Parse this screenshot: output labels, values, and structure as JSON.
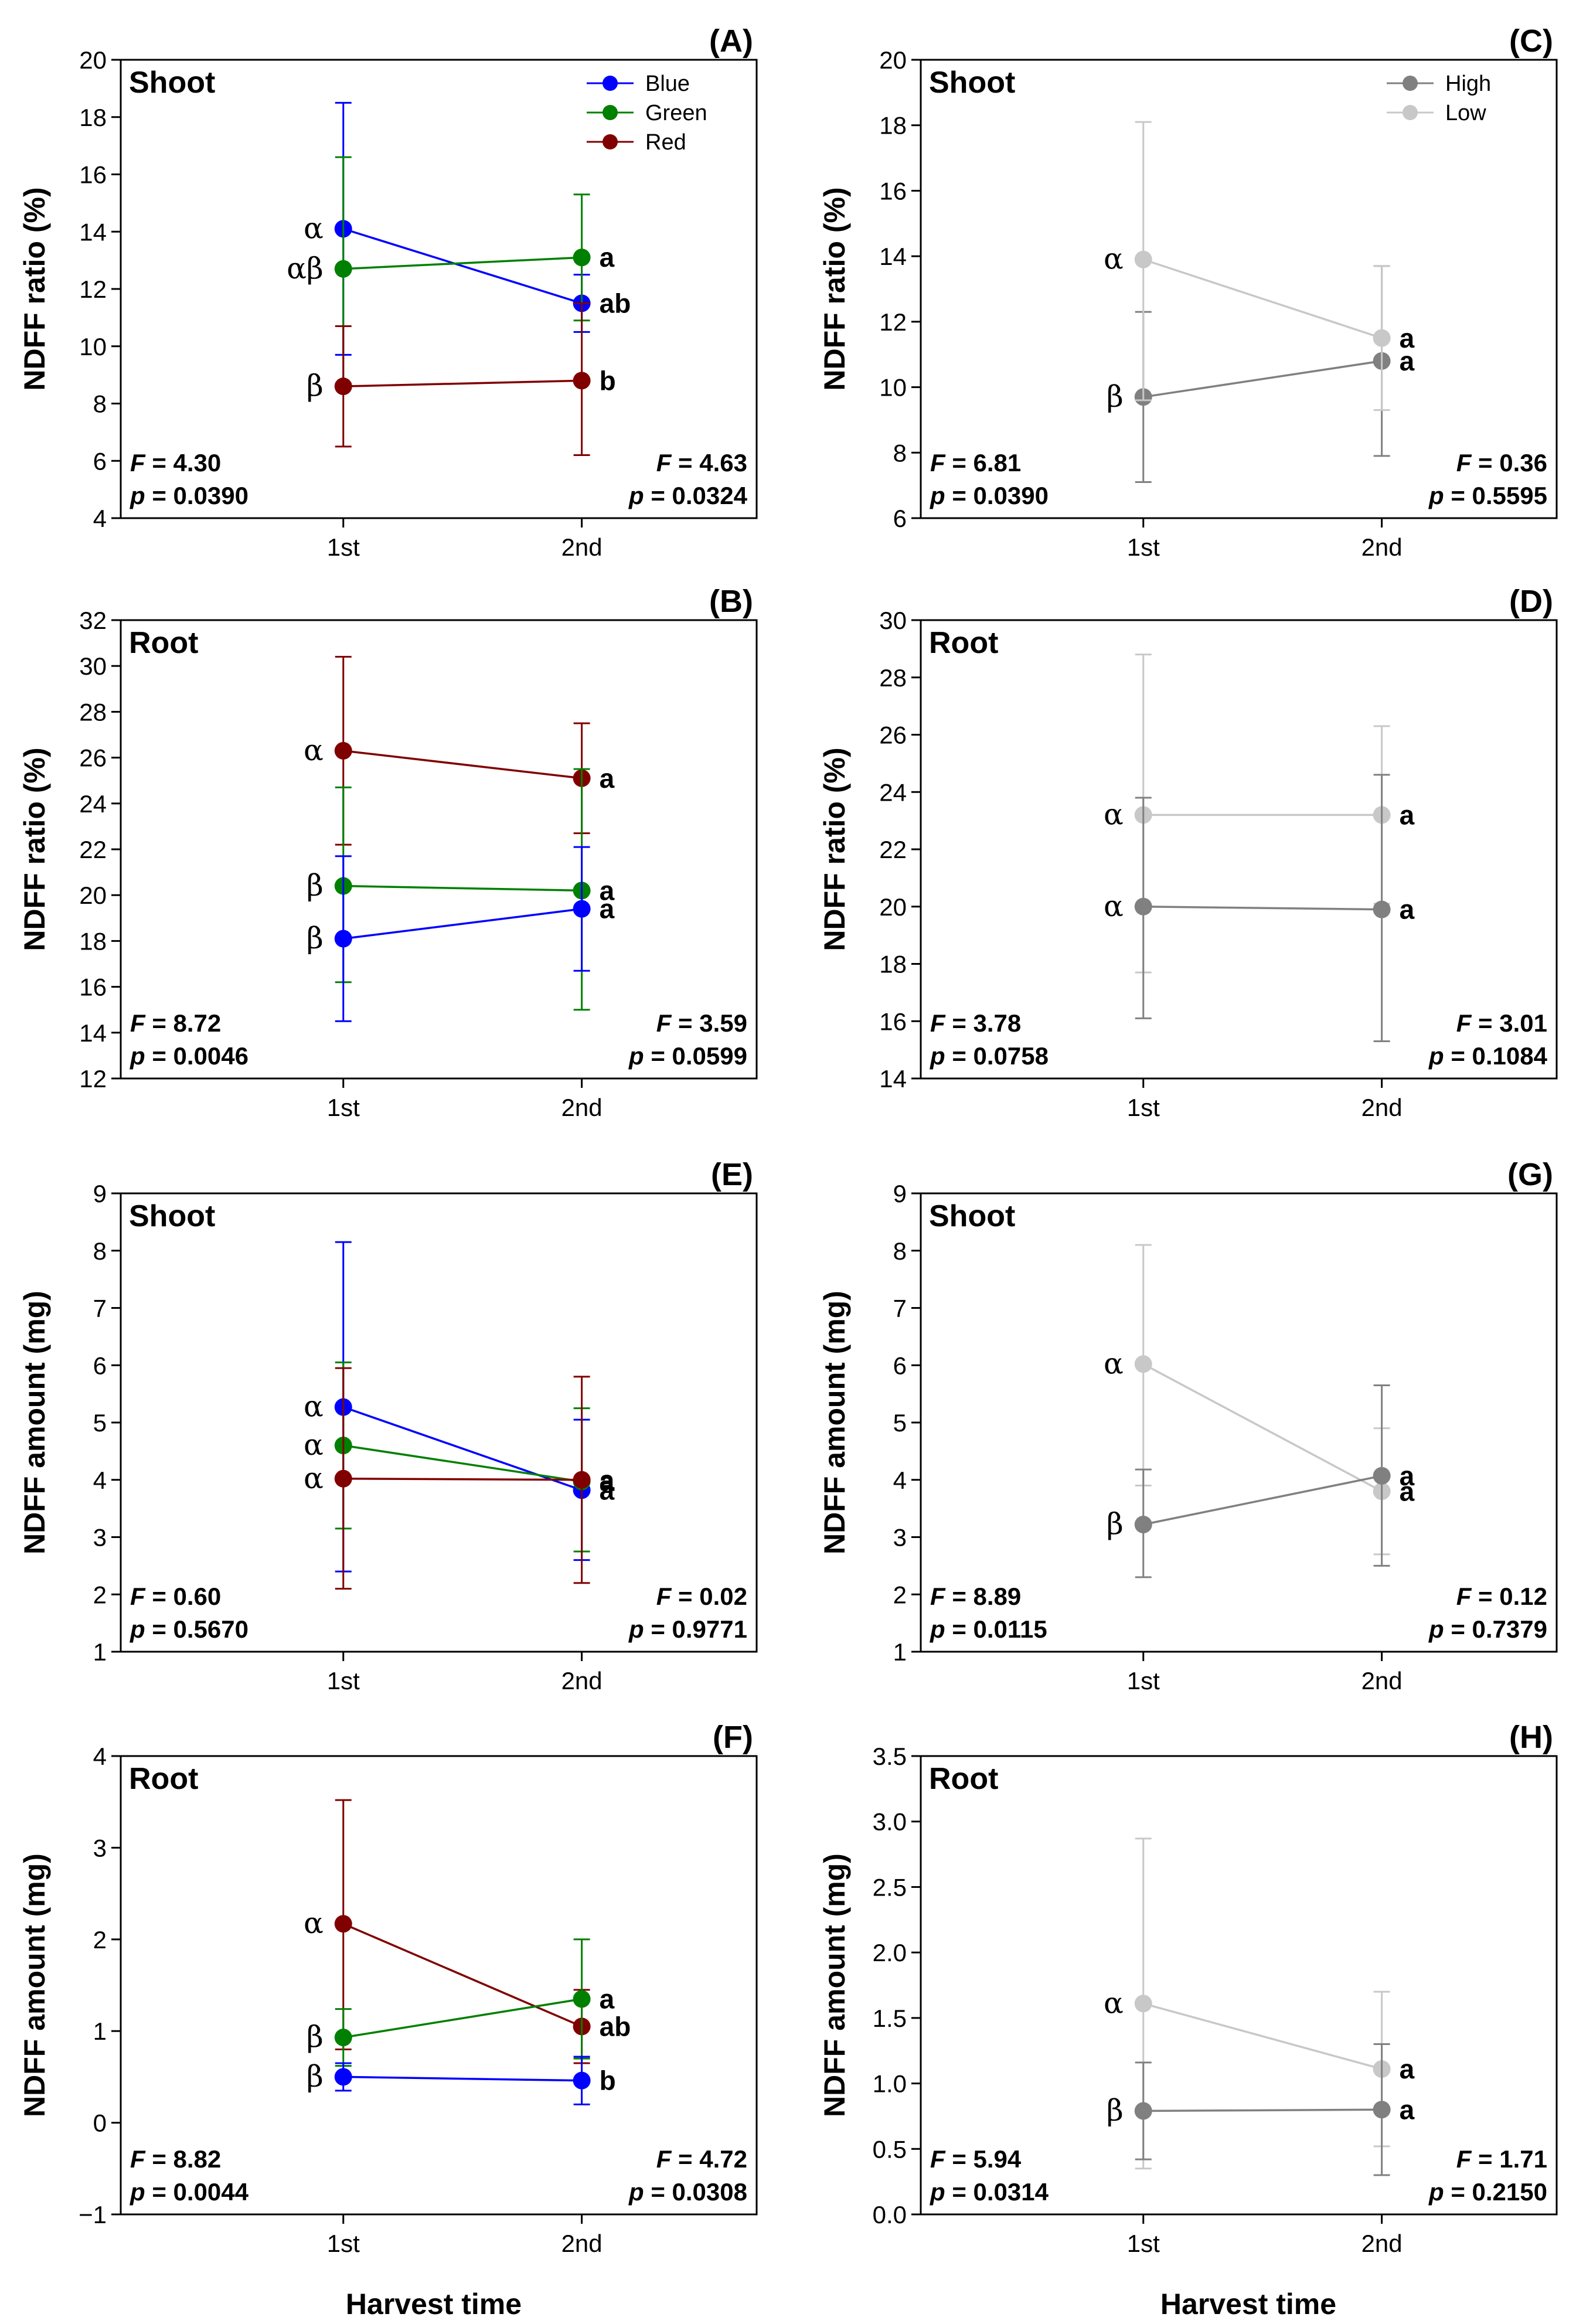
{
  "figure": {
    "bottom_xlabel_left": "Harvest time",
    "bottom_xlabel_right": "Harvest time"
  },
  "chart_data": [
    {
      "id": "A",
      "letter": "(A)",
      "tissue": "Shoot",
      "type": "line",
      "ylabel": "NDFF ratio (%)",
      "xlabel": "",
      "categories": [
        "1st",
        "2nd"
      ],
      "ylim": [
        4,
        20
      ],
      "yticks": [
        4,
        6,
        8,
        10,
        12,
        14,
        16,
        18,
        20
      ],
      "ytick_labels": [
        "4",
        "6",
        "8",
        "10",
        "12",
        "14",
        "16",
        "18",
        "20"
      ],
      "legend": true,
      "series": [
        {
          "name": "Blue",
          "color": "#0000ff",
          "values": [
            14.1,
            11.5
          ],
          "err_low": [
            9.7,
            10.5
          ],
          "err_high": [
            18.5,
            12.5
          ],
          "label_1st": "α",
          "label_2nd": "ab"
        },
        {
          "name": "Green",
          "color": "#008000",
          "values": [
            12.7,
            13.1
          ],
          "err_low": [
            8.7,
            10.9
          ],
          "err_high": [
            16.6,
            15.3
          ],
          "label_1st": "αβ",
          "label_2nd": "a"
        },
        {
          "name": "Red",
          "color": "#800000",
          "values": [
            8.6,
            8.8
          ],
          "err_low": [
            6.5,
            6.2
          ],
          "err_high": [
            10.7,
            11.5
          ],
          "label_1st": "β",
          "label_2nd": "b"
        }
      ],
      "stats_left": {
        "F_label": "F",
        "F_value": "4.30",
        "p_label": "p",
        "p_value": "0.0390"
      },
      "stats_right": {
        "F_label": "F",
        "F_value": "4.63",
        "p_label": "p",
        "p_value": "0.0324"
      }
    },
    {
      "id": "B",
      "letter": "(B)",
      "tissue": "Root",
      "type": "line",
      "ylabel": "NDFF ratio (%)",
      "xlabel": "",
      "categories": [
        "1st",
        "2nd"
      ],
      "ylim": [
        12,
        32
      ],
      "yticks": [
        12,
        14,
        16,
        18,
        20,
        22,
        24,
        26,
        28,
        30,
        32
      ],
      "ytick_labels": [
        "12",
        "14",
        "16",
        "18",
        "20",
        "22",
        "24",
        "26",
        "28",
        "30",
        "32"
      ],
      "legend": false,
      "series": [
        {
          "name": "Red",
          "color": "#800000",
          "values": [
            26.3,
            25.1
          ],
          "err_low": [
            22.2,
            22.7
          ],
          "err_high": [
            30.4,
            27.5
          ],
          "label_1st": "α",
          "label_2nd": "a"
        },
        {
          "name": "Green",
          "color": "#008000",
          "values": [
            20.4,
            20.2
          ],
          "err_low": [
            16.2,
            15.0
          ],
          "err_high": [
            24.7,
            25.5
          ],
          "label_1st": "β",
          "label_2nd": "a"
        },
        {
          "name": "Blue",
          "color": "#0000ff",
          "values": [
            18.1,
            19.4
          ],
          "err_low": [
            14.5,
            16.7
          ],
          "err_high": [
            21.7,
            22.1
          ],
          "label_1st": "β",
          "label_2nd": "a"
        }
      ],
      "stats_left": {
        "F_label": "F",
        "F_value": "8.72",
        "p_label": "p",
        "p_value": "0.0046"
      },
      "stats_right": {
        "F_label": "F",
        "F_value": "3.59",
        "p_label": "p",
        "p_value": "0.0599"
      }
    },
    {
      "id": "E",
      "letter": "(E)",
      "tissue": "Shoot",
      "type": "line",
      "ylabel": "NDFF amount (mg)",
      "xlabel": "",
      "categories": [
        "1st",
        "2nd"
      ],
      "ylim": [
        1,
        9
      ],
      "yticks": [
        1,
        2,
        3,
        4,
        5,
        6,
        7,
        8,
        9
      ],
      "ytick_labels": [
        "1",
        "2",
        "3",
        "4",
        "5",
        "6",
        "7",
        "8",
        "9"
      ],
      "legend": false,
      "series": [
        {
          "name": "Blue",
          "color": "#0000ff",
          "values": [
            5.27,
            3.82
          ],
          "err_low": [
            2.4,
            2.6
          ],
          "err_high": [
            8.15,
            5.05
          ],
          "label_1st": "α",
          "label_2nd": "a"
        },
        {
          "name": "Green",
          "color": "#008000",
          "values": [
            4.6,
            3.97
          ],
          "err_low": [
            3.15,
            2.75
          ],
          "err_high": [
            6.05,
            5.25
          ],
          "label_1st": "α",
          "label_2nd": "a"
        },
        {
          "name": "Red",
          "color": "#800000",
          "values": [
            4.02,
            4.0
          ],
          "err_low": [
            2.1,
            2.2
          ],
          "err_high": [
            5.95,
            5.8
          ],
          "label_1st": "α",
          "label_2nd": "a"
        }
      ],
      "stats_left": {
        "F_label": "F",
        "F_value": "0.60",
        "p_label": "p",
        "p_value": "0.5670"
      },
      "stats_right": {
        "F_label": "F",
        "F_value": "0.02",
        "p_label": "p",
        "p_value": "0.9771"
      }
    },
    {
      "id": "F",
      "letter": "(F)",
      "tissue": "Root",
      "type": "line",
      "ylabel": "NDFF amount (mg)",
      "xlabel": "",
      "categories": [
        "1st",
        "2nd"
      ],
      "ylim": [
        -1,
        4
      ],
      "yticks": [
        -1,
        0,
        1,
        2,
        3,
        4
      ],
      "ytick_labels": [
        "−1",
        "0",
        "1",
        "2",
        "3",
        "4"
      ],
      "legend": false,
      "series": [
        {
          "name": "Red",
          "color": "#800000",
          "values": [
            2.17,
            1.05
          ],
          "err_low": [
            0.8,
            0.65
          ],
          "err_high": [
            3.52,
            1.45
          ],
          "label_1st": "α",
          "label_2nd": "ab"
        },
        {
          "name": "Green",
          "color": "#008000",
          "values": [
            0.93,
            1.35
          ],
          "err_low": [
            0.62,
            0.7
          ],
          "err_high": [
            1.24,
            2.0
          ],
          "label_1st": "β",
          "label_2nd": "a"
        },
        {
          "name": "Blue",
          "color": "#0000ff",
          "values": [
            0.5,
            0.46
          ],
          "err_low": [
            0.35,
            0.2
          ],
          "err_high": [
            0.65,
            0.72
          ],
          "label_1st": "β",
          "label_2nd": "b"
        }
      ],
      "stats_left": {
        "F_label": "F",
        "F_value": "8.82",
        "p_label": "p",
        "p_value": "0.0044"
      },
      "stats_right": {
        "F_label": "F",
        "F_value": "4.72",
        "p_label": "p",
        "p_value": "0.0308"
      }
    },
    {
      "id": "C",
      "letter": "(C)",
      "tissue": "Shoot",
      "type": "line",
      "ylabel": "NDFF ratio (%)",
      "xlabel": "",
      "categories": [
        "1st",
        "2nd"
      ],
      "ylim": [
        6,
        20
      ],
      "yticks": [
        6,
        8,
        10,
        12,
        14,
        16,
        18,
        20
      ],
      "ytick_labels": [
        "6",
        "8",
        "10",
        "12",
        "14",
        "16",
        "18",
        "20"
      ],
      "legend": true,
      "series": [
        {
          "name": "High",
          "color": "#808080",
          "values": [
            9.7,
            10.8
          ],
          "err_low": [
            7.1,
            7.9
          ],
          "err_high": [
            12.3,
            13.7
          ],
          "label_1st": "β",
          "label_2nd": "a"
        },
        {
          "name": "Low",
          "color": "#c8c8c8",
          "values": [
            13.9,
            11.5
          ],
          "err_low": [
            9.6,
            9.3
          ],
          "err_high": [
            18.1,
            13.7
          ],
          "label_1st": "α",
          "label_2nd": "a"
        }
      ],
      "stats_left": {
        "F_label": "F",
        "F_value": "6.81",
        "p_label": "p",
        "p_value": "0.0390"
      },
      "stats_right": {
        "F_label": "F",
        "F_value": "0.36",
        "p_label": "p",
        "p_value": "0.5595"
      }
    },
    {
      "id": "D",
      "letter": "(D)",
      "tissue": "Root",
      "type": "line",
      "ylabel": "NDFF ratio (%)",
      "xlabel": "",
      "categories": [
        "1st",
        "2nd"
      ],
      "ylim": [
        14,
        30
      ],
      "yticks": [
        14,
        16,
        18,
        20,
        22,
        24,
        26,
        28,
        30
      ],
      "ytick_labels": [
        "14",
        "16",
        "18",
        "20",
        "22",
        "24",
        "26",
        "28",
        "30"
      ],
      "legend": false,
      "series": [
        {
          "name": "Low",
          "color": "#c8c8c8",
          "values": [
            23.2,
            23.2
          ],
          "err_low": [
            17.7,
            20.1
          ],
          "err_high": [
            28.8,
            26.3
          ],
          "label_1st": "α",
          "label_2nd": "a"
        },
        {
          "name": "High",
          "color": "#808080",
          "values": [
            20.0,
            19.9
          ],
          "err_low": [
            16.1,
            15.3
          ],
          "err_high": [
            23.8,
            24.6
          ],
          "label_1st": "α",
          "label_2nd": "a"
        }
      ],
      "stats_left": {
        "F_label": "F",
        "F_value": "3.78",
        "p_label": "p",
        "p_value": "0.0758"
      },
      "stats_right": {
        "F_label": "F",
        "F_value": "3.01",
        "p_label": "p",
        "p_value": "0.1084"
      }
    },
    {
      "id": "G",
      "letter": "(G)",
      "tissue": "Shoot",
      "type": "line",
      "ylabel": "NDFF amount (mg)",
      "xlabel": "",
      "categories": [
        "1st",
        "2nd"
      ],
      "ylim": [
        1,
        9
      ],
      "yticks": [
        1,
        2,
        3,
        4,
        5,
        6,
        7,
        8,
        9
      ],
      "ytick_labels": [
        "1",
        "2",
        "3",
        "4",
        "5",
        "6",
        "7",
        "8",
        "9"
      ],
      "legend": false,
      "series": [
        {
          "name": "Low",
          "color": "#c8c8c8",
          "values": [
            6.02,
            3.8
          ],
          "err_low": [
            3.9,
            2.7
          ],
          "err_high": [
            8.1,
            4.9
          ],
          "label_1st": "α",
          "label_2nd": "a"
        },
        {
          "name": "High",
          "color": "#808080",
          "values": [
            3.22,
            4.07
          ],
          "err_low": [
            2.3,
            2.5
          ],
          "err_high": [
            4.18,
            5.65
          ],
          "label_1st": "β",
          "label_2nd": "a"
        }
      ],
      "stats_left": {
        "F_label": "F",
        "F_value": "8.89",
        "p_label": "p",
        "p_value": "0.0115"
      },
      "stats_right": {
        "F_label": "F",
        "F_value": "0.12",
        "p_label": "p",
        "p_value": "0.7379"
      }
    },
    {
      "id": "H",
      "letter": "(H)",
      "tissue": "Root",
      "type": "line",
      "ylabel": "NDFF amount (mg)",
      "xlabel": "",
      "categories": [
        "1st",
        "2nd"
      ],
      "ylim": [
        0,
        3.5
      ],
      "yticks": [
        0,
        0.5,
        1,
        1.5,
        2,
        2.5,
        3,
        3.5
      ],
      "ytick_labels": [
        "0.0",
        "0.5",
        "1.0",
        "1.5",
        "2.0",
        "2.5",
        "3.0",
        "3.5"
      ],
      "legend": false,
      "series": [
        {
          "name": "Low",
          "color": "#c8c8c8",
          "values": [
            1.61,
            1.11
          ],
          "err_low": [
            0.35,
            0.52
          ],
          "err_high": [
            2.87,
            1.7
          ],
          "label_1st": "α",
          "label_2nd": "a"
        },
        {
          "name": "High",
          "color": "#808080",
          "values": [
            0.79,
            0.8
          ],
          "err_low": [
            0.42,
            0.3
          ],
          "err_high": [
            1.16,
            1.3
          ],
          "label_1st": "β",
          "label_2nd": "a"
        }
      ],
      "stats_left": {
        "F_label": "F",
        "F_value": "5.94",
        "p_label": "p",
        "p_value": "0.0314"
      },
      "stats_right": {
        "F_label": "F",
        "F_value": "1.71",
        "p_label": "p",
        "p_value": "0.2150"
      }
    }
  ]
}
